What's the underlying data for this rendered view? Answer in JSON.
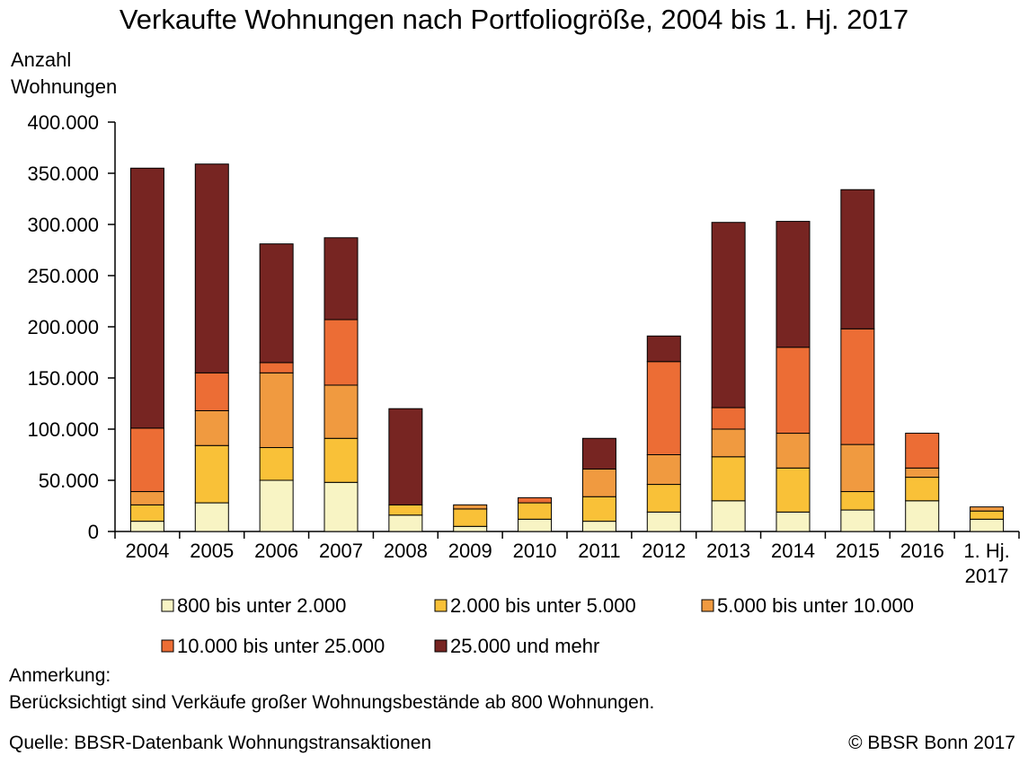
{
  "title": "Verkaufte Wohnungen nach Portfoliogröße, 2004 bis 1. Hj. 2017",
  "ylabel_line1": "Anzahl",
  "ylabel_line2": "Wohnungen",
  "note": {
    "heading": "Anmerkung:",
    "text": "Berücksichtigt sind Verkäufe großer Wohnungsbestände ab 800 Wohnungen."
  },
  "source": "Quelle: BBSR-Datenbank Wohnungstransaktionen",
  "copyright": "© BBSR Bonn 2017",
  "chart_data": {
    "type": "bar",
    "stacked": true,
    "categories": [
      "2004",
      "2005",
      "2006",
      "2007",
      "2008",
      "2009",
      "2010",
      "2011",
      "2012",
      "2013",
      "2014",
      "2015",
      "2016",
      "1. Hj. 2017"
    ],
    "ylim": [
      0,
      400000
    ],
    "yticks": [
      0,
      50000,
      100000,
      150000,
      200000,
      250000,
      300000,
      350000,
      400000
    ],
    "ytick_labels": [
      "0",
      "50.000",
      "100.000",
      "150.000",
      "200.000",
      "250.000",
      "300.000",
      "350.000",
      "400.000"
    ],
    "grid": false,
    "legend_position": "bottom",
    "series": [
      {
        "name": "800 bis unter 2.000",
        "color": "#f8f4c4",
        "values": [
          10000,
          28000,
          50000,
          48000,
          16000,
          5000,
          12000,
          10000,
          19000,
          30000,
          19000,
          21000,
          30000,
          12000
        ]
      },
      {
        "name": "2.000 bis unter 5.000",
        "color": "#f9c138",
        "values": [
          16000,
          56000,
          32000,
          43000,
          10000,
          17000,
          16000,
          24000,
          27000,
          43000,
          43000,
          18000,
          23000,
          8000
        ]
      },
      {
        "name": "5.000 bis unter 10.000",
        "color": "#f09a40",
        "values": [
          13000,
          34000,
          73000,
          52000,
          0,
          4000,
          0,
          27000,
          29000,
          27000,
          34000,
          46000,
          9000,
          4000
        ]
      },
      {
        "name": "10.000 bis unter 25.000",
        "color": "#ec6d35",
        "values": [
          62000,
          37000,
          10000,
          64000,
          0,
          0,
          5000,
          0,
          91000,
          21000,
          84000,
          113000,
          34000,
          0
        ]
      },
      {
        "name": "25.000 und mehr",
        "color": "#772522",
        "values": [
          254000,
          204000,
          116000,
          80000,
          94000,
          0,
          0,
          30000,
          25000,
          181000,
          123000,
          136000,
          0,
          0
        ]
      }
    ]
  }
}
